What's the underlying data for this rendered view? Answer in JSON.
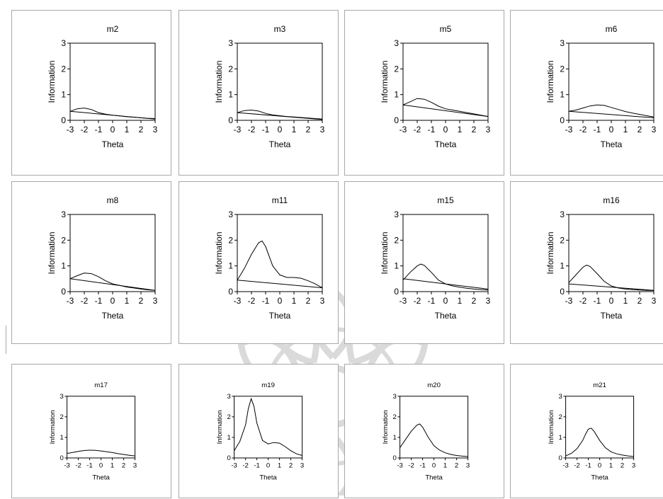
{
  "colors": {
    "panel_border": "#a8a8a8",
    "line": "#000000",
    "watermark": "#d4d4d4"
  },
  "watermark_icon": "ornamental-flower-watermark",
  "chart_data": [
    {
      "type": "line",
      "title": "m2",
      "xlabel": "Theta",
      "ylabel": "Information",
      "xlim": [
        -3,
        3
      ],
      "ylim": [
        0,
        3
      ],
      "xticks": [
        "-3",
        "-2",
        "-1",
        "0",
        "1",
        "2",
        "3"
      ],
      "yticks": [
        "0",
        "1",
        "2",
        "3"
      ],
      "series": [
        {
          "x": [
            -3,
            -2.5,
            -2,
            -1.5,
            -1,
            -0.5,
            0,
            0.5,
            1,
            1.5,
            2,
            2.5,
            3
          ],
          "y": [
            0.35,
            0.45,
            0.48,
            0.42,
            0.3,
            0.24,
            0.2,
            0.17,
            0.14,
            0.12,
            0.1,
            0.08,
            0.07
          ]
        },
        {
          "x": [
            -3,
            3
          ],
          "y": [
            0.35,
            0.05
          ]
        }
      ]
    },
    {
      "type": "line",
      "title": "m3",
      "xlabel": "Theta",
      "ylabel": "Information",
      "xlim": [
        -3,
        3
      ],
      "ylim": [
        0,
        3
      ],
      "xticks": [
        "-3",
        "-2",
        "-1",
        "0",
        "1",
        "2",
        "3"
      ],
      "yticks": [
        "0",
        "1",
        "2",
        "3"
      ],
      "series": [
        {
          "x": [
            -3,
            -2.5,
            -2,
            -1.5,
            -1,
            -0.5,
            0,
            0.5,
            1,
            1.5,
            2,
            2.5,
            3
          ],
          "y": [
            0.3,
            0.38,
            0.4,
            0.36,
            0.27,
            0.21,
            0.18,
            0.15,
            0.13,
            0.11,
            0.09,
            0.07,
            0.05
          ]
        },
        {
          "x": [
            -3,
            3
          ],
          "y": [
            0.3,
            0.03
          ]
        }
      ]
    },
    {
      "type": "line",
      "title": "m5",
      "xlabel": "Theta",
      "ylabel": "Information",
      "xlim": [
        -3,
        3
      ],
      "ylim": [
        0,
        3
      ],
      "xticks": [
        "-3",
        "-2",
        "-1",
        "0",
        "1",
        "2",
        "3"
      ],
      "yticks": [
        "0",
        "1",
        "2",
        "3"
      ],
      "series": [
        {
          "x": [
            -3,
            -2.5,
            -2,
            -1.5,
            -1,
            -0.5,
            0,
            0.5,
            1,
            1.5,
            2,
            2.5,
            3
          ],
          "y": [
            0.6,
            0.72,
            0.85,
            0.82,
            0.7,
            0.55,
            0.45,
            0.4,
            0.35,
            0.3,
            0.25,
            0.2,
            0.15
          ]
        },
        {
          "x": [
            -3,
            3
          ],
          "y": [
            0.6,
            0.15
          ]
        }
      ]
    },
    {
      "type": "line",
      "title": "m6",
      "xlabel": "Theta",
      "ylabel": "Information",
      "xlim": [
        -3,
        3
      ],
      "ylim": [
        0,
        3
      ],
      "xticks": [
        "-3",
        "-2",
        "-1",
        "0",
        "1",
        "2",
        "3"
      ],
      "yticks": [
        "0",
        "1",
        "2",
        "3"
      ],
      "series": [
        {
          "x": [
            -3,
            -2.5,
            -2,
            -1.5,
            -1,
            -0.5,
            0,
            0.5,
            1,
            1.5,
            2,
            2.5,
            3
          ],
          "y": [
            0.35,
            0.4,
            0.48,
            0.56,
            0.6,
            0.58,
            0.5,
            0.42,
            0.34,
            0.28,
            0.23,
            0.18,
            0.13
          ]
        },
        {
          "x": [
            -3,
            3
          ],
          "y": [
            0.35,
            0.1
          ]
        }
      ]
    },
    {
      "type": "line",
      "title": "m8",
      "xlabel": "Theta",
      "ylabel": "Information",
      "xlim": [
        -3,
        3
      ],
      "ylim": [
        0,
        3
      ],
      "xticks": [
        "-3",
        "-2",
        "-1",
        "0",
        "1",
        "2",
        "3"
      ],
      "yticks": [
        "0",
        "1",
        "2",
        "3"
      ],
      "series": [
        {
          "x": [
            -3,
            -2.5,
            -2,
            -1.5,
            -1,
            -0.5,
            0,
            0.5,
            1,
            1.5,
            2,
            2.5,
            3
          ],
          "y": [
            0.5,
            0.62,
            0.72,
            0.7,
            0.58,
            0.42,
            0.3,
            0.24,
            0.18,
            0.14,
            0.1,
            0.07,
            0.05
          ]
        },
        {
          "x": [
            -3,
            3
          ],
          "y": [
            0.5,
            0.05
          ]
        }
      ]
    },
    {
      "type": "line",
      "title": "m11",
      "xlabel": "Theta",
      "ylabel": "Information",
      "xlim": [
        -3,
        3
      ],
      "ylim": [
        0,
        3
      ],
      "xticks": [
        "-3",
        "-2",
        "-1",
        "0",
        "1",
        "2",
        "3"
      ],
      "yticks": [
        "0",
        "1",
        "2",
        "3"
      ],
      "series": [
        {
          "x": [
            -3,
            -2.5,
            -2,
            -1.5,
            -1.25,
            -1,
            -0.5,
            0,
            0.5,
            1,
            1.5,
            2,
            2.5,
            3
          ],
          "y": [
            0.45,
            0.9,
            1.45,
            1.9,
            1.97,
            1.75,
            1.0,
            0.65,
            0.55,
            0.55,
            0.52,
            0.42,
            0.3,
            0.15
          ]
        },
        {
          "x": [
            -3,
            3
          ],
          "y": [
            0.45,
            0.15
          ]
        }
      ]
    },
    {
      "type": "line",
      "title": "m15",
      "xlabel": "Theta",
      "ylabel": "Information",
      "xlim": [
        -3,
        3
      ],
      "ylim": [
        0,
        3
      ],
      "xticks": [
        "-3",
        "-2",
        "-1",
        "0",
        "1",
        "2",
        "3"
      ],
      "yticks": [
        "0",
        "1",
        "2",
        "3"
      ],
      "series": [
        {
          "x": [
            -3,
            -2.5,
            -2,
            -1.75,
            -1.5,
            -1,
            -0.5,
            0,
            0.5,
            1,
            1.5,
            2,
            2.5,
            3
          ],
          "y": [
            0.45,
            0.75,
            1.0,
            1.07,
            1.02,
            0.75,
            0.45,
            0.3,
            0.22,
            0.17,
            0.13,
            0.1,
            0.08,
            0.06
          ]
        },
        {
          "x": [
            -3,
            3
          ],
          "y": [
            0.5,
            0.1
          ]
        }
      ]
    },
    {
      "type": "line",
      "title": "m16",
      "xlabel": "Theta",
      "ylabel": "Information",
      "xlim": [
        -3,
        3
      ],
      "ylim": [
        0,
        3
      ],
      "xticks": [
        "-3",
        "-2",
        "-1",
        "0",
        "1",
        "2",
        "3"
      ],
      "yticks": [
        "0",
        "1",
        "2",
        "3"
      ],
      "series": [
        {
          "x": [
            -3,
            -2.5,
            -2,
            -1.75,
            -1.5,
            -1,
            -0.5,
            0,
            0.5,
            1,
            1.5,
            2,
            2.5,
            3
          ],
          "y": [
            0.35,
            0.65,
            0.95,
            1.03,
            0.98,
            0.7,
            0.4,
            0.22,
            0.14,
            0.1,
            0.08,
            0.06,
            0.05,
            0.04
          ]
        },
        {
          "x": [
            -3,
            3
          ],
          "y": [
            0.3,
            0.05
          ]
        }
      ]
    },
    {
      "type": "line",
      "title": "m17",
      "xlabel": "Theta",
      "ylabel": "Information",
      "xlim": [
        -3,
        3
      ],
      "ylim": [
        0,
        3
      ],
      "xticks": [
        "-3",
        "-2",
        "-1",
        "0",
        "1",
        "2",
        "3"
      ],
      "yticks": [
        "0",
        "1",
        "2",
        "3"
      ],
      "series": [
        {
          "x": [
            -3,
            -2.5,
            -2,
            -1.5,
            -1,
            -0.5,
            0,
            0.5,
            1,
            1.5,
            2,
            2.5,
            3
          ],
          "y": [
            0.22,
            0.27,
            0.32,
            0.36,
            0.38,
            0.37,
            0.34,
            0.3,
            0.26,
            0.21,
            0.17,
            0.13,
            0.1
          ]
        }
      ]
    },
    {
      "type": "line",
      "title": "m19",
      "xlabel": "Theta",
      "ylabel": "Information",
      "xlim": [
        -3,
        3
      ],
      "ylim": [
        0,
        3
      ],
      "xticks": [
        "-3",
        "-2",
        "-1",
        "0",
        "1",
        "2",
        "3"
      ],
      "yticks": [
        "0",
        "1",
        "2",
        "3"
      ],
      "series": [
        {
          "x": [
            -3,
            -2.5,
            -2,
            -1.75,
            -1.5,
            -1.25,
            -1,
            -0.5,
            0,
            0.5,
            1,
            1.5,
            2,
            2.5,
            3
          ],
          "y": [
            0.35,
            0.8,
            1.6,
            2.4,
            2.88,
            2.5,
            1.7,
            0.85,
            0.68,
            0.75,
            0.72,
            0.55,
            0.35,
            0.2,
            0.12
          ]
        }
      ]
    },
    {
      "type": "line",
      "title": "m20",
      "xlabel": "Theta",
      "ylabel": "Information",
      "xlim": [
        -3,
        3
      ],
      "ylim": [
        0,
        3
      ],
      "xticks": [
        "-3",
        "-2",
        "-1",
        "0",
        "1",
        "2",
        "3"
      ],
      "yticks": [
        "0",
        "1",
        "2",
        "3"
      ],
      "series": [
        {
          "x": [
            -3,
            -2.5,
            -2,
            -1.5,
            -1.25,
            -1,
            -0.5,
            0,
            0.5,
            1,
            1.5,
            2,
            2.5,
            3
          ],
          "y": [
            0.5,
            0.9,
            1.3,
            1.6,
            1.65,
            1.5,
            1.0,
            0.6,
            0.38,
            0.25,
            0.17,
            0.12,
            0.09,
            0.07
          ]
        }
      ]
    },
    {
      "type": "line",
      "title": "m21",
      "xlabel": "Theta",
      "ylabel": "Information",
      "xlim": [
        -3,
        3
      ],
      "ylim": [
        0,
        3
      ],
      "xticks": [
        "-3",
        "-2",
        "-1",
        "0",
        "1",
        "2",
        "3"
      ],
      "yticks": [
        "0",
        "1",
        "2",
        "3"
      ],
      "series": [
        {
          "x": [
            -3,
            -2.5,
            -2,
            -1.5,
            -1.25,
            -1,
            -0.75,
            -0.5,
            0,
            0.5,
            1,
            1.5,
            2,
            2.5,
            3
          ],
          "y": [
            0.1,
            0.22,
            0.45,
            0.85,
            1.15,
            1.4,
            1.45,
            1.3,
            0.85,
            0.5,
            0.3,
            0.2,
            0.14,
            0.1,
            0.07
          ]
        }
      ]
    }
  ]
}
